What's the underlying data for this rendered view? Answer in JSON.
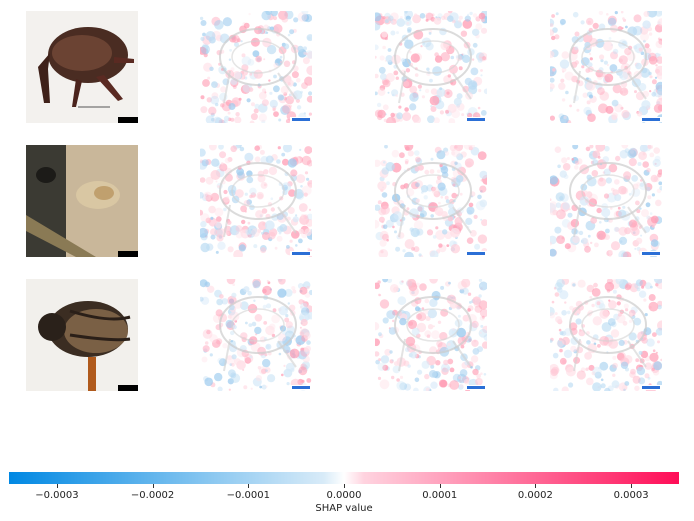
{
  "chart_data": {
    "type": "heatmap",
    "description_kind": "shap-image-explanation-grid",
    "rows": 3,
    "columns": 4,
    "colorbar": {
      "label": "SHAP value",
      "range": [
        -0.00035,
        0.00035
      ],
      "ticks": [
        -0.0003,
        -0.0002,
        -0.0001,
        0.0,
        0.0001,
        0.0002,
        0.0003
      ],
      "tick_labels": [
        "−0.0003",
        "−0.0002",
        "−0.0001",
        "0.0000",
        "0.0001",
        "0.0002",
        "0.0003"
      ],
      "negative_color": "#008bfb",
      "positive_color": "#ff0052"
    },
    "images": [
      {
        "kind": "weevil-side-view",
        "scale_tag": "0000540"
      },
      {
        "kind": "insect-larva-closeup",
        "scale_tag": "0000776"
      },
      {
        "kind": "beetle-dorsal-view",
        "scale_tag": "0000972"
      }
    ]
  }
}
